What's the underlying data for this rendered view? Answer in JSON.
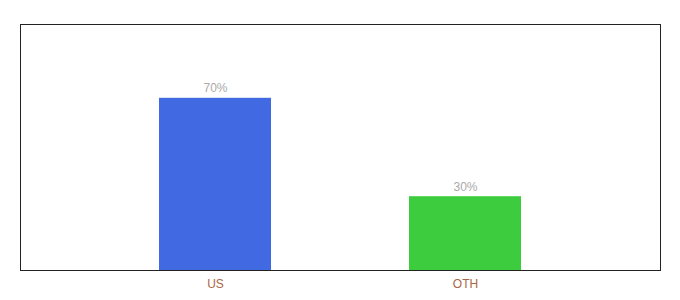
{
  "chart_data": {
    "type": "bar",
    "categories": [
      "US",
      "OTH"
    ],
    "values": [
      70,
      30
    ],
    "value_labels": [
      "70%",
      "30%"
    ],
    "colors": [
      "#4169e1",
      "#3dcc3d"
    ],
    "ylim": [
      0,
      100
    ],
    "data_labels": true,
    "tick_labels": "x"
  }
}
